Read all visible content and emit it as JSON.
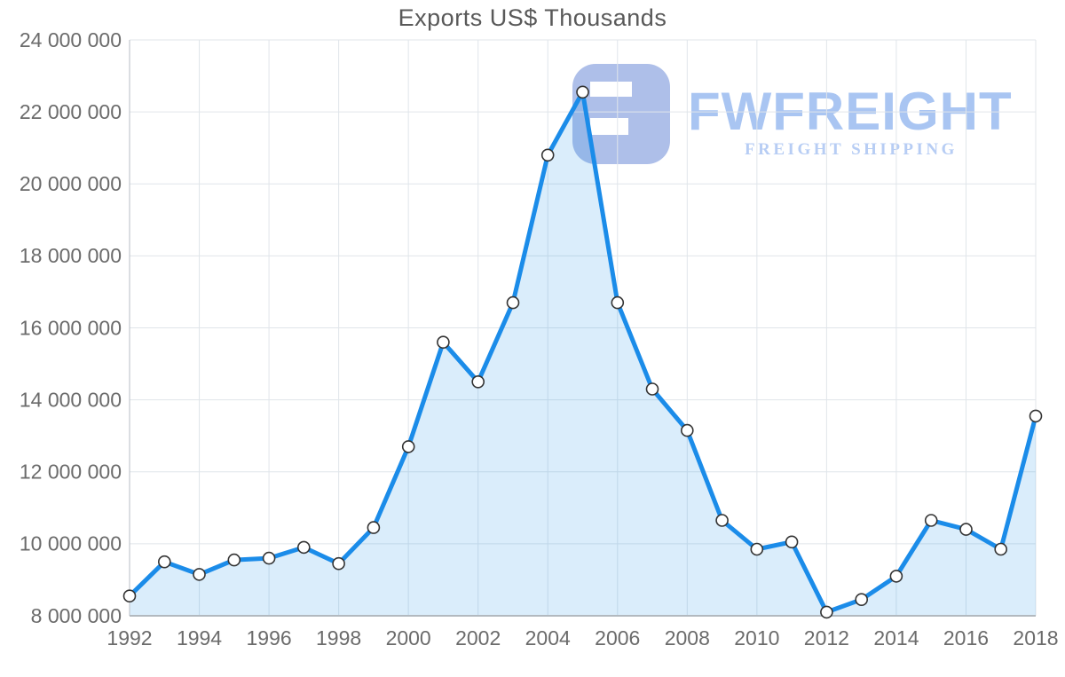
{
  "chart_data": {
    "type": "area",
    "title": "Exports US$ Thousands",
    "x": [
      1992,
      1993,
      1994,
      1995,
      1996,
      1997,
      1998,
      1999,
      2000,
      2001,
      2002,
      2003,
      2004,
      2005,
      2006,
      2007,
      2008,
      2009,
      2010,
      2011,
      2012,
      2013,
      2014,
      2015,
      2016,
      2017,
      2018
    ],
    "values": [
      8550000,
      9500000,
      9150000,
      9550000,
      9600000,
      9900000,
      9450000,
      10450000,
      12700000,
      15600000,
      14500000,
      16700000,
      20800000,
      22550000,
      16700000,
      14300000,
      13150000,
      10650000,
      9850000,
      10050000,
      8100000,
      8450000,
      9100000,
      10650000,
      10400000,
      9850000,
      13550000
    ],
    "xlabel": "",
    "ylabel": "",
    "ylim": [
      8000000,
      24000000
    ],
    "grid": true,
    "legend": "none",
    "x_tick_labels": [
      "1992",
      "1994",
      "1996",
      "1998",
      "2000",
      "2002",
      "2004",
      "2006",
      "2008",
      "2010",
      "2012",
      "2014",
      "2016",
      "2018"
    ],
    "x_tick_years": [
      1992,
      1994,
      1996,
      1998,
      2000,
      2002,
      2004,
      2006,
      2008,
      2010,
      2012,
      2014,
      2016,
      2018
    ],
    "y_tick_values": [
      8000000,
      10000000,
      12000000,
      14000000,
      16000000,
      18000000,
      20000000,
      22000000,
      24000000
    ],
    "y_tick_labels": [
      "8 000 000",
      "10 000 000",
      "12 000 000",
      "14 000 000",
      "16 000 000",
      "18 000 000",
      "20 000 000",
      "22 000 000",
      "24 000 000"
    ],
    "colors": {
      "line": "#1b8ce9",
      "area_fill": "rgba(27,140,233,0.16)",
      "marker_fill": "#ffffff",
      "marker_stroke": "#333333",
      "grid": "#e0e5ea",
      "axis_left": "#c3c9ce",
      "axis_bottom": "#b2b9bf",
      "tick_text": "#6b6b6b",
      "title_text": "#595959"
    }
  },
  "watermark": {
    "brand": "FWFREIGHT",
    "tagline": "FREIGHT SHIPPING",
    "mark_color": "#aebfe9",
    "brand_color": "#a9c5f2",
    "tagline_color": "#b7cdf4"
  }
}
